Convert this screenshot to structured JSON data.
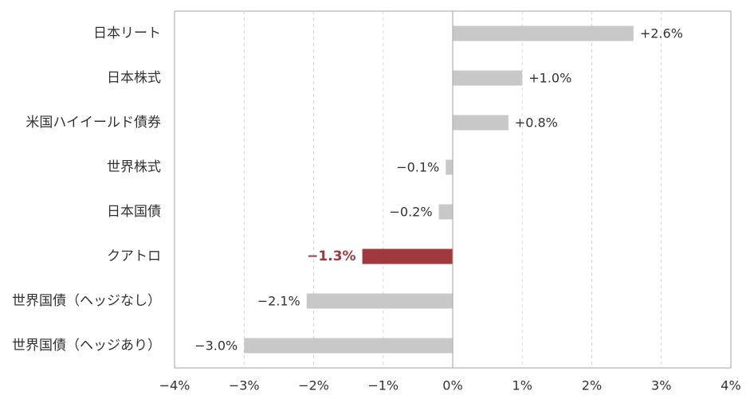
{
  "chart_data": {
    "type": "bar",
    "orientation": "horizontal",
    "categories": [
      "日本リート",
      "日本株式",
      "米国ハイイールド債券",
      "世界株式",
      "日本国債",
      "クアトロ",
      "世界国債（ヘッジなし）",
      "世界国債（ヘッジあり）"
    ],
    "values": [
      2.6,
      1.0,
      0.8,
      -0.1,
      -0.2,
      -1.3,
      -2.1,
      -3.0
    ],
    "value_labels": [
      "+2.6%",
      "+1.0%",
      "+0.8%",
      "−0.1%",
      "−0.2%",
      "−1.3%",
      "−2.1%",
      "−3.0%"
    ],
    "highlight_index": 5,
    "xlim": [
      -4,
      4
    ],
    "xticks": [
      -4,
      -3,
      -2,
      -1,
      0,
      1,
      2,
      3,
      4
    ],
    "xtick_labels": [
      "−4%",
      "−3%",
      "−2%",
      "−1%",
      "0%",
      "1%",
      "2%",
      "3%",
      "4%"
    ],
    "grid": "vertical dashed",
    "colors": {
      "bar": "#c8c8c8",
      "highlight": "#a0393d",
      "text": "#333333",
      "grid": "#d9d9d9",
      "axis": "#a6a6a6"
    }
  }
}
